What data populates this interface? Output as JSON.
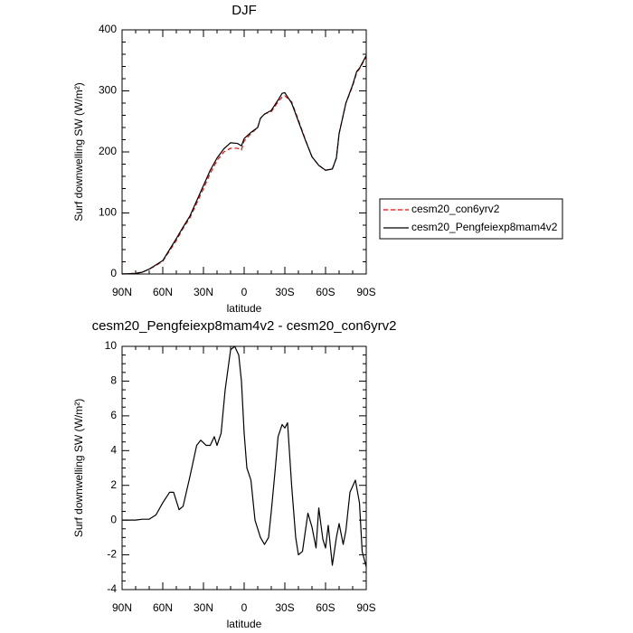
{
  "chart_data": [
    {
      "type": "line",
      "title": "DJF",
      "xlabel": "latitude",
      "ylabel": "Surf downwelling SW (W/m²)",
      "x": [
        90,
        80,
        75,
        70,
        65,
        60,
        55,
        50,
        45,
        40,
        35,
        30,
        25,
        20,
        15,
        10,
        5,
        2,
        0,
        -5,
        -10,
        -12,
        -15,
        -20,
        -25,
        -28,
        -30,
        -35,
        -40,
        -45,
        -50,
        -55,
        -60,
        -65,
        -68,
        -70,
        -75,
        -80,
        -83,
        -85,
        -90
      ],
      "series": [
        {
          "name": "cesm20_con6yrv2",
          "color": "#ff0000",
          "dash": true,
          "values": [
            0,
            1,
            3,
            8,
            14,
            21,
            38,
            55,
            75,
            92,
            116,
            140,
            165,
            186,
            200,
            206,
            206,
            203,
            218,
            230,
            240,
            255,
            262,
            266,
            282,
            290,
            292,
            282,
            252,
            221,
            192,
            178,
            170,
            172,
            190,
            230,
            280,
            308,
            330,
            336,
            356
          ]
        },
        {
          "name": "cesm20_Pengfeiexp8mam4v2",
          "color": "#000000",
          "dash": false,
          "values": [
            0,
            1,
            3,
            8,
            15,
            22,
            40,
            58,
            77,
            95,
            120,
            145,
            170,
            190,
            205,
            215,
            214,
            210,
            222,
            232,
            240,
            255,
            262,
            268,
            285,
            296,
            297,
            280,
            250,
            220,
            192,
            178,
            170,
            172,
            190,
            230,
            280,
            310,
            332,
            337,
            358
          ]
        }
      ],
      "xlim": [
        90,
        -90
      ],
      "xticks": [
        {
          "value": 90,
          "label": "90N"
        },
        {
          "value": 60,
          "label": "60N"
        },
        {
          "value": 30,
          "label": "30N"
        },
        0,
        {
          "value": -30,
          "label": "30S"
        },
        {
          "value": -60,
          "label": "60S"
        },
        {
          "value": -90,
          "label": "90S"
        }
      ],
      "ylim": [
        0,
        400
      ],
      "yticks": [
        0,
        100,
        200,
        300,
        400
      ],
      "legend": "outside-right"
    },
    {
      "type": "line",
      "title": "cesm20_Pengfeiexp8mam4v2 - cesm20_con6yrv2",
      "xlabel": "latitude",
      "ylabel": "Surf downwelling SW (W/m²)",
      "x": [
        90,
        80,
        75,
        70,
        65,
        60,
        55,
        52,
        48,
        45,
        40,
        35,
        32,
        28,
        25,
        22,
        20,
        17,
        14,
        10,
        7,
        4,
        2,
        0,
        -2,
        -5,
        -8,
        -12,
        -15,
        -18,
        -20,
        -23,
        -25,
        -28,
        -30,
        -32,
        -35,
        -38,
        -40,
        -43,
        -47,
        -50,
        -53,
        -55,
        -58,
        -60,
        -62,
        -65,
        -68,
        -70,
        -73,
        -75,
        -78,
        -82,
        -85,
        -87,
        -90
      ],
      "values": [
        0,
        0,
        0.05,
        0.05,
        0.3,
        1.0,
        1.6,
        1.6,
        0.6,
        0.8,
        2.5,
        4.3,
        4.6,
        4.3,
        4.3,
        4.8,
        4.3,
        5,
        7.5,
        9.8,
        10,
        9.5,
        8,
        5,
        3,
        2.3,
        0,
        -1,
        -1.4,
        -1,
        0.5,
        3,
        4.8,
        5.5,
        5.3,
        5.6,
        2,
        -1,
        -2,
        -1.8,
        0.4,
        -0.4,
        -1.6,
        0.7,
        -1.1,
        -1.6,
        -0.3,
        -2.6,
        -1,
        -0.2,
        -1.4,
        -0.6,
        1.6,
        2.3,
        1,
        -1.8,
        -2.7
      ],
      "color": "#000000",
      "xlim": [
        90,
        -90
      ],
      "xticks": [
        {
          "value": 90,
          "label": "90N"
        },
        {
          "value": 60,
          "label": "60N"
        },
        {
          "value": 30,
          "label": "30N"
        },
        0,
        {
          "value": -30,
          "label": "30S"
        },
        {
          "value": -60,
          "label": "60S"
        },
        {
          "value": -90,
          "label": "90S"
        }
      ],
      "ylim": [
        -4,
        10
      ],
      "yticks": [
        -4,
        -2,
        0,
        2,
        4,
        6,
        8,
        10
      ]
    }
  ]
}
